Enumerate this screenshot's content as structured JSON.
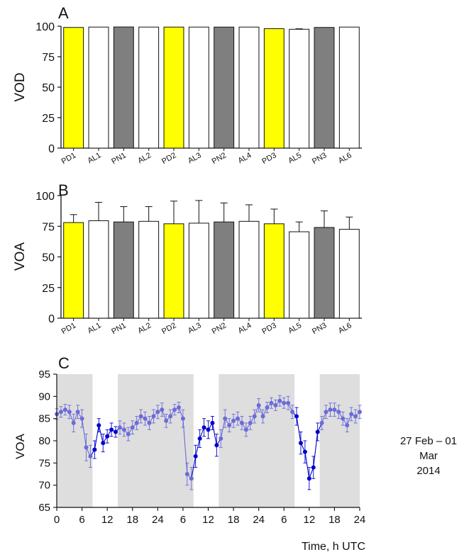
{
  "colors": {
    "pd": "#ffff00",
    "al": "#ffffff",
    "pn": "#7f7f7f",
    "night_band": "#dedede",
    "series_dark": "#0000cc",
    "series_light": "#6b6bd8"
  },
  "note": {
    "line1": "27 Feb – 01 Mar",
    "line2": "2014"
  },
  "chart_data": [
    {
      "panel": "A",
      "type": "bar",
      "ylabel": "VOD",
      "ylim": [
        0,
        100
      ],
      "yticks": [
        0,
        25,
        50,
        75,
        100
      ],
      "categories": [
        "PD1",
        "AL1",
        "PN1",
        "AL2",
        "PD2",
        "AL3",
        "PN2",
        "AL4",
        "PD3",
        "AL5",
        "PN3",
        "AL6"
      ],
      "values": [
        99,
        99.3,
        99.4,
        99.3,
        99.3,
        99.3,
        99.3,
        99.3,
        98,
        97.5,
        99,
        99.3
      ],
      "errors": [
        0,
        0,
        0,
        0,
        0,
        0,
        0,
        0,
        0,
        0.4,
        0,
        0
      ],
      "bar_groups": [
        "pd",
        "al",
        "pn",
        "al",
        "pd",
        "al",
        "pn",
        "al",
        "pd",
        "al",
        "pn",
        "al"
      ]
    },
    {
      "panel": "B",
      "type": "bar",
      "ylabel": "VOA",
      "ylim": [
        0,
        100
      ],
      "yticks": [
        0,
        25,
        50,
        75,
        100
      ],
      "categories": [
        "PD1",
        "AL1",
        "PN1",
        "AL2",
        "PD2",
        "AL3",
        "PN2",
        "AL4",
        "PD3",
        "AL5",
        "PN3",
        "AL6"
      ],
      "values": [
        78,
        79.5,
        78.5,
        79,
        77,
        77.5,
        78.5,
        79,
        77,
        70.5,
        74,
        72.5
      ],
      "errors": [
        6.5,
        15,
        12.5,
        12,
        18.5,
        18.5,
        15.5,
        13.5,
        12,
        8,
        13.5,
        10
      ],
      "bar_groups": [
        "pd",
        "al",
        "pn",
        "al",
        "pd",
        "al",
        "pn",
        "al",
        "pd",
        "al",
        "pn",
        "al"
      ]
    },
    {
      "panel": "C",
      "type": "line",
      "ylabel": "VOA",
      "xlabel": "Time, h UTC",
      "ylim": [
        65,
        95
      ],
      "yticks": [
        65,
        70,
        75,
        80,
        85,
        90,
        95
      ],
      "x_range_hours": [
        0,
        72
      ],
      "xtick_labels": [
        "0",
        "6",
        "12",
        "18",
        "24",
        "6",
        "12",
        "18",
        "24",
        "6",
        "12",
        "18",
        "24"
      ],
      "night_bands_hours": [
        [
          0,
          8.5
        ],
        [
          14.5,
          32.5
        ],
        [
          38.5,
          56.5
        ],
        [
          62.5,
          72
        ]
      ],
      "x_hours": [
        0,
        1,
        2,
        3,
        4,
        5,
        6,
        7,
        8,
        9,
        10,
        11,
        12,
        13,
        14,
        15,
        16,
        17,
        18,
        19,
        20,
        21,
        22,
        23,
        24,
        25,
        26,
        27,
        28,
        29,
        30,
        31,
        32,
        33,
        34,
        35,
        36,
        37,
        38,
        39,
        40,
        41,
        42,
        43,
        44,
        45,
        46,
        47,
        48,
        49,
        50,
        51,
        52,
        53,
        54,
        55,
        56,
        57,
        58,
        59,
        60,
        61,
        62,
        63,
        64,
        65,
        66,
        67,
        68,
        69,
        70,
        71,
        72
      ],
      "values": [
        86,
        86.5,
        87,
        86.5,
        84,
        86.5,
        85,
        78.5,
        76.5,
        78,
        83.5,
        79.5,
        81,
        82.5,
        82,
        83,
        82.5,
        81.5,
        83,
        84,
        85.5,
        85,
        84,
        85.5,
        86.5,
        87,
        84.5,
        85.5,
        87,
        87.5,
        85,
        72.5,
        71.5,
        76.5,
        80.5,
        83,
        82.5,
        84,
        79,
        80.5,
        85,
        83.5,
        84.5,
        85,
        84,
        82.5,
        84,
        85.5,
        88,
        85.5,
        87.5,
        88.5,
        88,
        89,
        88.5,
        88.5,
        86.5,
        85.5,
        79.5,
        77.5,
        71.5,
        74,
        82,
        84,
        86.5,
        87,
        87,
        86.5,
        85,
        83.5,
        86,
        85.5,
        86.5
      ],
      "errors": [
        1.2,
        1.2,
        1.2,
        1.5,
        2,
        1.5,
        2,
        3,
        2.5,
        2,
        1.5,
        2,
        1.5,
        1.5,
        1.2,
        1.5,
        1.5,
        1.5,
        1.5,
        1.5,
        1.5,
        1.5,
        1.5,
        1.5,
        1.5,
        1.5,
        1.5,
        1.5,
        1.2,
        1.2,
        2,
        2.5,
        2.5,
        2.5,
        2,
        2,
        2,
        1.5,
        2.5,
        2,
        2,
        1.5,
        1.5,
        1.5,
        1.5,
        1.5,
        1.5,
        1.5,
        1.5,
        1.5,
        1.2,
        1.2,
        1.2,
        1.2,
        1.2,
        1.5,
        1.5,
        2,
        2.5,
        2.5,
        2.5,
        2.5,
        2,
        1.5,
        1.5,
        1.5,
        1.5,
        1.5,
        1.5,
        1.5,
        1.5,
        1.5,
        1.5
      ]
    }
  ]
}
